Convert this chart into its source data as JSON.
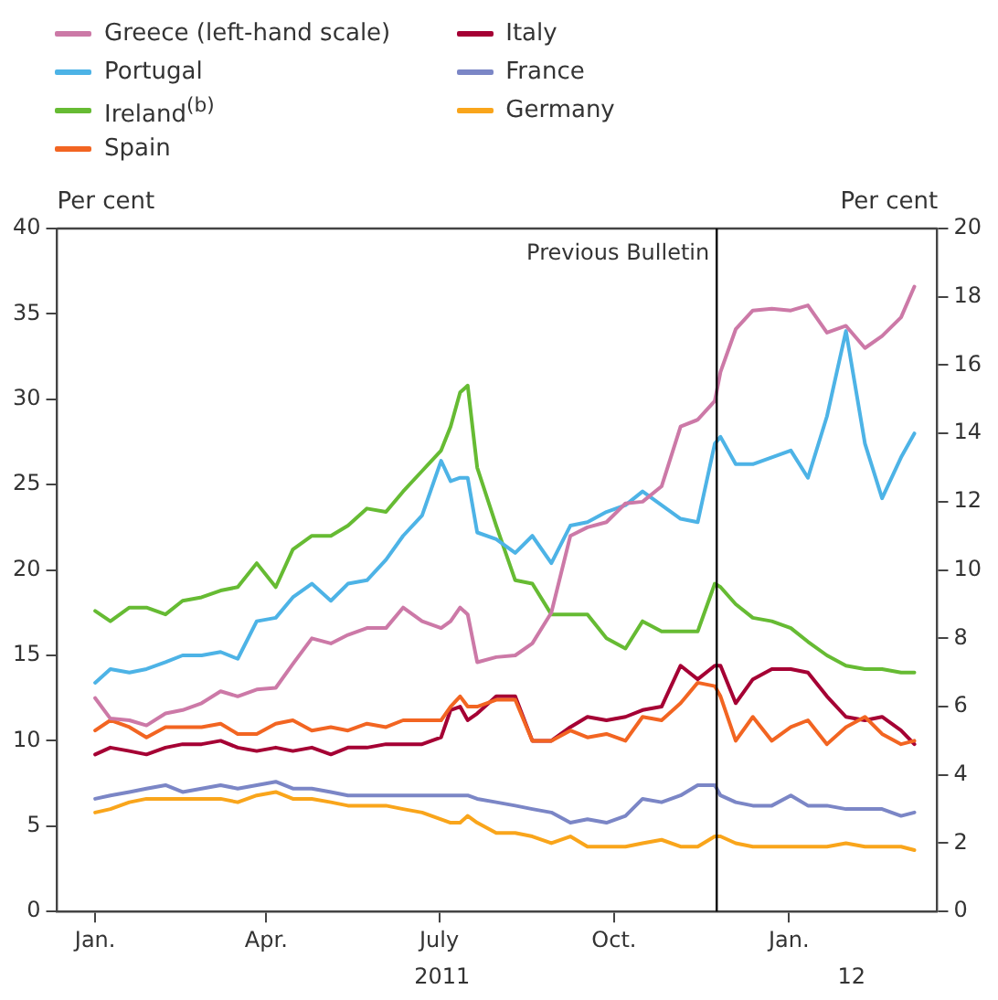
{
  "chart_data": {
    "type": "line",
    "ylabel": "Per cent",
    "y2label": "Per cent",
    "legend": "top left",
    "marker": "none",
    "grid": false,
    "x": [
      "2011-01-01",
      "2011-01-09",
      "2011-01-19",
      "2011-01-28",
      "2011-02-07",
      "2011-02-16",
      "2011-02-26",
      "2011-03-08",
      "2011-03-17",
      "2011-03-27",
      "2011-04-06",
      "2011-04-15",
      "2011-04-25",
      "2011-05-05",
      "2011-05-14",
      "2011-05-24",
      "2011-06-03",
      "2011-06-12",
      "2011-06-22",
      "2011-07-02",
      "2011-07-07",
      "2011-07-12",
      "2011-07-16",
      "2011-07-21",
      "2011-07-31",
      "2011-08-10",
      "2011-08-19",
      "2011-08-29",
      "2011-09-08",
      "2011-09-17",
      "2011-09-27",
      "2011-10-07",
      "2011-10-16",
      "2011-10-26",
      "2011-11-05",
      "2011-11-14",
      "2011-11-23",
      "2011-11-26",
      "2011-12-04",
      "2011-12-13",
      "2011-12-23",
      "2012-01-02",
      "2012-01-11",
      "2012-01-21",
      "2012-01-31",
      "2012-02-10",
      "2012-02-19",
      "2012-02-29",
      "2012-03-07"
    ],
    "xlim": [
      "2010-12-12",
      "2012-03-19"
    ],
    "xticks": [
      {
        "value": "2011-01-01",
        "label": "Jan."
      },
      {
        "value": "2011-04-01",
        "label": "Apr."
      },
      {
        "value": "2011-07-01",
        "label": "July"
      },
      {
        "value": "2011-10-01",
        "label": "Oct."
      },
      {
        "value": "2012-01-01",
        "label": "Jan."
      }
    ],
    "ylim": [
      0,
      40
    ],
    "yticks": [
      0,
      5,
      10,
      15,
      20,
      25,
      30,
      35,
      40
    ],
    "y2lim": [
      0,
      20
    ],
    "y2ticks": [
      0,
      2,
      4,
      6,
      8,
      10,
      12,
      14,
      16,
      18,
      20
    ],
    "series": [
      {
        "name": "Greece (left-hand scale)",
        "color": "#cc79a7",
        "values": [
          12.5,
          11.3,
          11.2,
          10.9,
          11.6,
          11.8,
          12.2,
          12.9,
          12.6,
          13.0,
          13.1,
          14.5,
          16.0,
          15.7,
          16.2,
          16.6,
          16.6,
          17.8,
          17.0,
          16.6,
          17.0,
          17.8,
          17.4,
          14.6,
          14.9,
          15.0,
          15.7,
          17.5,
          22.0,
          22.5,
          22.8,
          23.9,
          24.0,
          24.9,
          28.4,
          28.8,
          29.9,
          31.6,
          34.1,
          35.2,
          35.3,
          35.2,
          35.5,
          33.9,
          34.3,
          33.0,
          33.7,
          34.8,
          36.6
        ]
      },
      {
        "name": "Portugal",
        "color": "#4db3e6",
        "axis": "y2",
        "values": [
          6.7,
          7.1,
          7.0,
          7.1,
          7.3,
          7.5,
          7.5,
          7.6,
          7.4,
          8.5,
          8.6,
          9.2,
          9.6,
          9.1,
          9.6,
          9.7,
          10.3,
          11.0,
          11.6,
          13.2,
          12.6,
          12.7,
          12.7,
          11.1,
          10.9,
          10.5,
          11.0,
          10.2,
          11.3,
          11.4,
          11.7,
          11.9,
          12.3,
          11.9,
          11.5,
          11.4,
          13.7,
          13.9,
          13.1,
          13.1,
          13.3,
          13.5,
          12.7,
          14.5,
          17.0,
          13.7,
          12.1,
          13.3,
          14.0
        ]
      },
      {
        "name": "Ireland$^{(b)}$",
        "color": "#66bb33",
        "axis": "y2",
        "values": [
          8.8,
          8.5,
          8.9,
          8.9,
          8.7,
          9.1,
          9.2,
          9.4,
          9.5,
          10.2,
          9.5,
          10.6,
          11.0,
          11.0,
          11.3,
          11.8,
          11.7,
          12.3,
          12.9,
          13.5,
          14.2,
          15.2,
          15.4,
          13.0,
          11.3,
          9.7,
          9.6,
          8.7,
          8.7,
          8.7,
          8.0,
          7.7,
          8.5,
          8.2,
          8.2,
          8.2,
          9.6,
          9.5,
          9.0,
          8.6,
          8.5,
          8.3,
          7.9,
          7.5,
          7.2,
          7.1,
          7.1,
          7.0,
          7.0
        ]
      },
      {
        "name": "Spain",
        "color": "#f26522",
        "axis": "y2",
        "values": [
          5.3,
          5.6,
          5.4,
          5.1,
          5.4,
          5.4,
          5.4,
          5.5,
          5.2,
          5.2,
          5.5,
          5.6,
          5.3,
          5.4,
          5.3,
          5.5,
          5.4,
          5.6,
          5.6,
          5.6,
          6.0,
          6.3,
          6.0,
          6.0,
          6.2,
          6.2,
          5.0,
          5.0,
          5.3,
          5.1,
          5.2,
          5.0,
          5.7,
          5.6,
          6.1,
          6.7,
          6.6,
          6.3,
          5.0,
          5.7,
          5.0,
          5.4,
          5.6,
          4.9,
          5.4,
          5.7,
          5.2,
          4.9,
          5.0
        ]
      },
      {
        "name": "Italy",
        "color": "#a50034",
        "axis": "y2",
        "values": [
          4.6,
          4.8,
          4.7,
          4.6,
          4.8,
          4.9,
          4.9,
          5.0,
          4.8,
          4.7,
          4.8,
          4.7,
          4.8,
          4.6,
          4.8,
          4.8,
          4.9,
          4.9,
          4.9,
          5.1,
          5.9,
          6.0,
          5.6,
          5.8,
          6.3,
          6.3,
          5.0,
          5.0,
          5.4,
          5.7,
          5.6,
          5.7,
          5.9,
          6.0,
          7.2,
          6.8,
          7.2,
          7.2,
          6.1,
          6.8,
          7.1,
          7.1,
          7.0,
          6.3,
          5.7,
          5.6,
          5.7,
          5.3,
          4.9
        ]
      },
      {
        "name": "France",
        "color": "#7b86c6",
        "axis": "y2",
        "values": [
          3.3,
          3.4,
          3.5,
          3.6,
          3.7,
          3.5,
          3.6,
          3.7,
          3.6,
          3.7,
          3.8,
          3.6,
          3.6,
          3.5,
          3.4,
          3.4,
          3.4,
          3.4,
          3.4,
          3.4,
          3.4,
          3.4,
          3.4,
          3.3,
          3.2,
          3.1,
          3.0,
          2.9,
          2.6,
          2.7,
          2.6,
          2.8,
          3.3,
          3.2,
          3.4,
          3.7,
          3.7,
          3.4,
          3.2,
          3.1,
          3.1,
          3.4,
          3.1,
          3.1,
          3.0,
          3.0,
          3.0,
          2.8,
          2.9
        ]
      },
      {
        "name": "Germany",
        "color": "#f9a51b",
        "axis": "y2",
        "values": [
          2.9,
          3.0,
          3.2,
          3.3,
          3.3,
          3.3,
          3.3,
          3.3,
          3.2,
          3.4,
          3.5,
          3.3,
          3.3,
          3.2,
          3.1,
          3.1,
          3.1,
          3.0,
          2.9,
          2.7,
          2.6,
          2.6,
          2.8,
          2.6,
          2.3,
          2.3,
          2.2,
          2.0,
          2.2,
          1.9,
          1.9,
          1.9,
          2.0,
          2.1,
          1.9,
          1.9,
          2.2,
          2.2,
          2.0,
          1.9,
          1.9,
          1.9,
          1.9,
          1.9,
          2.0,
          1.9,
          1.9,
          1.9,
          1.8
        ]
      }
    ],
    "ref_lines": [
      {
        "axis": "x",
        "value": "2011-11-24",
        "label": "Previous Bulletin",
        "color": "#000000"
      }
    ],
    "annotations": [
      "2011",
      "12"
    ]
  }
}
